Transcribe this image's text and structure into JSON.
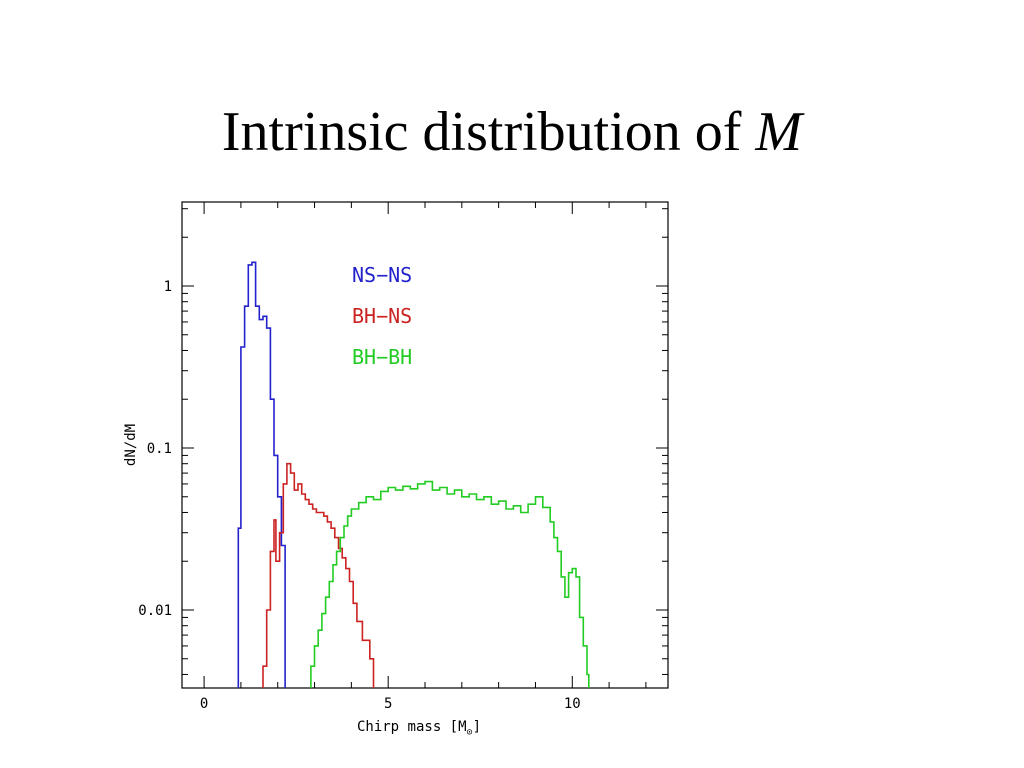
{
  "slide": {
    "title_text": "Intrinsic distribution of ",
    "title_symbol": "M"
  },
  "chart_data": {
    "type": "step",
    "xlabel": "Chirp mass [M",
    "xlabel_sub": "⊙",
    "xlabel_end": "]",
    "ylabel": "dN/dM",
    "xlim": [
      -0.6,
      12.6
    ],
    "ylim": [
      0.0033,
      3.3
    ],
    "yscale": "log",
    "x_ticks": [
      0,
      5,
      10
    ],
    "x_tick_labels": [
      "0",
      "5",
      "10"
    ],
    "y_ticks": [
      0.01,
      0.1,
      1
    ],
    "y_tick_labels": [
      "0.01",
      "0.1",
      "1"
    ],
    "legend_position": "top-center",
    "series": [
      {
        "name": "NS−NS",
        "color": "#2222cc",
        "points": [
          [
            0.93,
            0.0033
          ],
          [
            0.93,
            0.032
          ],
          [
            1.0,
            0.032
          ],
          [
            1.0,
            0.42
          ],
          [
            1.1,
            0.42
          ],
          [
            1.1,
            0.75
          ],
          [
            1.2,
            0.75
          ],
          [
            1.2,
            1.35
          ],
          [
            1.3,
            1.35
          ],
          [
            1.3,
            1.4
          ],
          [
            1.4,
            1.4
          ],
          [
            1.4,
            0.75
          ],
          [
            1.5,
            0.75
          ],
          [
            1.5,
            0.62
          ],
          [
            1.6,
            0.62
          ],
          [
            1.6,
            0.65
          ],
          [
            1.7,
            0.65
          ],
          [
            1.7,
            0.55
          ],
          [
            1.8,
            0.55
          ],
          [
            1.8,
            0.2
          ],
          [
            1.9,
            0.2
          ],
          [
            1.9,
            0.09
          ],
          [
            2.0,
            0.09
          ],
          [
            2.0,
            0.05
          ],
          [
            2.1,
            0.05
          ],
          [
            2.1,
            0.025
          ],
          [
            2.2,
            0.025
          ],
          [
            2.2,
            0.0033
          ]
        ]
      },
      {
        "name": "BH−NS",
        "color": "#cc2222",
        "points": [
          [
            1.6,
            0.0033
          ],
          [
            1.6,
            0.0045
          ],
          [
            1.7,
            0.0045
          ],
          [
            1.7,
            0.01
          ],
          [
            1.8,
            0.01
          ],
          [
            1.8,
            0.023
          ],
          [
            1.9,
            0.023
          ],
          [
            1.9,
            0.036
          ],
          [
            1.95,
            0.036
          ],
          [
            1.95,
            0.02
          ],
          [
            2.05,
            0.02
          ],
          [
            2.05,
            0.03
          ],
          [
            2.15,
            0.03
          ],
          [
            2.15,
            0.06
          ],
          [
            2.25,
            0.06
          ],
          [
            2.25,
            0.08
          ],
          [
            2.35,
            0.08
          ],
          [
            2.35,
            0.07
          ],
          [
            2.45,
            0.07
          ],
          [
            2.45,
            0.055
          ],
          [
            2.55,
            0.055
          ],
          [
            2.55,
            0.06
          ],
          [
            2.65,
            0.06
          ],
          [
            2.65,
            0.052
          ],
          [
            2.75,
            0.052
          ],
          [
            2.75,
            0.048
          ],
          [
            2.85,
            0.048
          ],
          [
            2.85,
            0.045
          ],
          [
            2.95,
            0.045
          ],
          [
            2.95,
            0.042
          ],
          [
            3.05,
            0.042
          ],
          [
            3.05,
            0.04
          ],
          [
            3.25,
            0.04
          ],
          [
            3.25,
            0.038
          ],
          [
            3.35,
            0.038
          ],
          [
            3.35,
            0.035
          ],
          [
            3.45,
            0.035
          ],
          [
            3.45,
            0.032
          ],
          [
            3.55,
            0.032
          ],
          [
            3.55,
            0.028
          ],
          [
            3.65,
            0.028
          ],
          [
            3.65,
            0.024
          ],
          [
            3.75,
            0.024
          ],
          [
            3.75,
            0.021
          ],
          [
            3.85,
            0.021
          ],
          [
            3.85,
            0.018
          ],
          [
            3.95,
            0.018
          ],
          [
            3.95,
            0.015
          ],
          [
            4.05,
            0.015
          ],
          [
            4.05,
            0.011
          ],
          [
            4.15,
            0.011
          ],
          [
            4.15,
            0.0085
          ],
          [
            4.3,
            0.0085
          ],
          [
            4.3,
            0.0065
          ],
          [
            4.5,
            0.0065
          ],
          [
            4.5,
            0.005
          ],
          [
            4.6,
            0.005
          ],
          [
            4.6,
            0.0033
          ]
        ]
      },
      {
        "name": "BH−BH",
        "color": "#22cc22",
        "points": [
          [
            2.9,
            0.0033
          ],
          [
            2.9,
            0.0045
          ],
          [
            3.0,
            0.0045
          ],
          [
            3.0,
            0.006
          ],
          [
            3.1,
            0.006
          ],
          [
            3.1,
            0.0075
          ],
          [
            3.2,
            0.0075
          ],
          [
            3.2,
            0.0095
          ],
          [
            3.3,
            0.0095
          ],
          [
            3.3,
            0.012
          ],
          [
            3.4,
            0.012
          ],
          [
            3.4,
            0.015
          ],
          [
            3.5,
            0.015
          ],
          [
            3.5,
            0.019
          ],
          [
            3.6,
            0.019
          ],
          [
            3.6,
            0.023
          ],
          [
            3.7,
            0.023
          ],
          [
            3.7,
            0.028
          ],
          [
            3.8,
            0.028
          ],
          [
            3.8,
            0.033
          ],
          [
            3.9,
            0.033
          ],
          [
            3.9,
            0.038
          ],
          [
            4.0,
            0.038
          ],
          [
            4.0,
            0.042
          ],
          [
            4.2,
            0.042
          ],
          [
            4.2,
            0.046
          ],
          [
            4.4,
            0.046
          ],
          [
            4.4,
            0.05
          ],
          [
            4.6,
            0.05
          ],
          [
            4.6,
            0.048
          ],
          [
            4.8,
            0.048
          ],
          [
            4.8,
            0.054
          ],
          [
            5.0,
            0.054
          ],
          [
            5.0,
            0.057
          ],
          [
            5.2,
            0.057
          ],
          [
            5.2,
            0.055
          ],
          [
            5.4,
            0.055
          ],
          [
            5.4,
            0.058
          ],
          [
            5.6,
            0.058
          ],
          [
            5.6,
            0.056
          ],
          [
            5.8,
            0.056
          ],
          [
            5.8,
            0.06
          ],
          [
            6.0,
            0.06
          ],
          [
            6.0,
            0.062
          ],
          [
            6.2,
            0.062
          ],
          [
            6.2,
            0.055
          ],
          [
            6.4,
            0.055
          ],
          [
            6.4,
            0.057
          ],
          [
            6.6,
            0.057
          ],
          [
            6.6,
            0.052
          ],
          [
            6.8,
            0.052
          ],
          [
            6.8,
            0.055
          ],
          [
            7.0,
            0.055
          ],
          [
            7.0,
            0.05
          ],
          [
            7.2,
            0.05
          ],
          [
            7.2,
            0.052
          ],
          [
            7.4,
            0.052
          ],
          [
            7.4,
            0.048
          ],
          [
            7.6,
            0.048
          ],
          [
            7.6,
            0.05
          ],
          [
            7.8,
            0.05
          ],
          [
            7.8,
            0.045
          ],
          [
            8.0,
            0.045
          ],
          [
            8.0,
            0.047
          ],
          [
            8.2,
            0.047
          ],
          [
            8.2,
            0.042
          ],
          [
            8.4,
            0.042
          ],
          [
            8.4,
            0.044
          ],
          [
            8.6,
            0.044
          ],
          [
            8.6,
            0.04
          ],
          [
            8.8,
            0.04
          ],
          [
            8.8,
            0.045
          ],
          [
            9.0,
            0.045
          ],
          [
            9.0,
            0.05
          ],
          [
            9.2,
            0.05
          ],
          [
            9.2,
            0.043
          ],
          [
            9.4,
            0.043
          ],
          [
            9.4,
            0.035
          ],
          [
            9.5,
            0.035
          ],
          [
            9.5,
            0.028
          ],
          [
            9.6,
            0.028
          ],
          [
            9.6,
            0.023
          ],
          [
            9.7,
            0.023
          ],
          [
            9.7,
            0.016
          ],
          [
            9.8,
            0.016
          ],
          [
            9.8,
            0.012
          ],
          [
            9.9,
            0.012
          ],
          [
            9.9,
            0.017
          ],
          [
            10.0,
            0.017
          ],
          [
            10.0,
            0.018
          ],
          [
            10.1,
            0.018
          ],
          [
            10.1,
            0.016
          ],
          [
            10.2,
            0.016
          ],
          [
            10.2,
            0.009
          ],
          [
            10.3,
            0.009
          ],
          [
            10.3,
            0.006
          ],
          [
            10.4,
            0.006
          ],
          [
            10.4,
            0.004
          ],
          [
            10.45,
            0.004
          ],
          [
            10.45,
            0.0033
          ]
        ]
      }
    ]
  }
}
